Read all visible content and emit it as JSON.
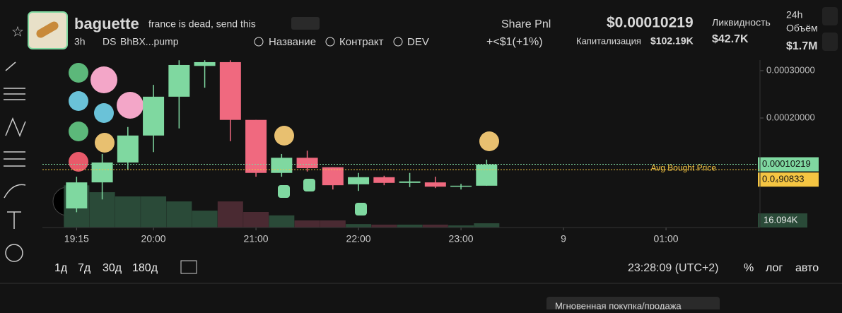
{
  "header": {
    "name": "baguette",
    "tagline": "france is dead, send this",
    "age": "3h",
    "ds": "DS",
    "address": "BhBX...pump",
    "links": [
      "Название",
      "Контракт",
      "DEV"
    ],
    "share": "Share Pnl",
    "pnl": "+<$1(+1%)",
    "price": "$0.00010219",
    "cap_label": "Капитализация",
    "cap_value": "$102.19K",
    "liq_label": "Ликвидность",
    "liq_value": "$42.7K",
    "vol_label_1": "24h",
    "vol_label_2": "Объём",
    "vol_value": "$1.7M"
  },
  "chart": {
    "type": "candlestick",
    "x": [
      1155,
      1170,
      1185,
      1200,
      1215,
      1230,
      1245,
      1260,
      1275,
      1290,
      1305,
      1320,
      1335,
      1350,
      1365,
      1380,
      1395
    ],
    "open": [
      9e-06,
      6.4e-05,
      0.000106,
      0.000163,
      0.000245,
      0.00031,
      0.000318,
      0.000196,
      8.4e-05,
      0.000116,
      9.6e-05,
      6e-05,
      7.5e-05,
      6.3e-05,
      6.4e-05,
      5.5e-05,
      5.7e-05
    ],
    "high": [
      7.6e-05,
      0.000124,
      0.000181,
      0.00027,
      0.000322,
      0.000322,
      0.000322,
      0.000196,
      0.000124,
      0.000131,
      9.6e-05,
      8.4e-05,
      7.8e-05,
      8.4e-05,
      7.6e-05,
      6.1e-05,
      0.000112
    ],
    "low": [
      1e-06,
      2.8e-05,
      9.1e-05,
      0.000128,
      0.000178,
      0.000264,
      0.000151,
      7.6e-05,
      7.6e-05,
      8.7e-05,
      4.9e-05,
      4.6e-05,
      5.8e-05,
      5.4e-05,
      5.2e-05,
      4.9e-05,
      5.7e-05
    ],
    "close": [
      6.4e-05,
      0.000106,
      0.000163,
      0.000245,
      0.000312,
      0.000318,
      0.000196,
      8.4e-05,
      0.000116,
      9.4e-05,
      5.8e-05,
      7.5e-05,
      6.3e-05,
      6.6e-05,
      5.5e-05,
      5.7e-05,
      0.000102
    ],
    "volume": [
      160,
      134,
      118,
      118,
      99,
      64,
      99,
      59,
      46,
      27,
      27,
      13,
      11,
      11,
      11,
      8,
      16.094
    ],
    "volume_label": "16.094K",
    "up_color": "#7fd8a0",
    "down_color": "#f0697f",
    "ylim": [
      -3.13e-05,
      0.0003224
    ],
    "xlim": [
      1135,
      1555
    ],
    "yticks": [
      {
        "value": 0.0003,
        "label": "0.00030000"
      },
      {
        "value": 0.0002,
        "label": "0.00020000"
      }
    ],
    "xticks": [
      {
        "value": 1155,
        "label": "19:15"
      },
      {
        "value": 1200,
        "label": "20:00"
      },
      {
        "value": 1260,
        "label": "21:00"
      },
      {
        "value": 1320,
        "label": "22:00"
      },
      {
        "value": 1380,
        "label": "23:00"
      },
      {
        "value": 1440,
        "label": "9"
      },
      {
        "value": 1500,
        "label": "01:00"
      }
    ],
    "avg_label": "Avg Bought Price",
    "price_labels": [
      {
        "value": 0.00010219,
        "label": "0.00010219",
        "color": "#7fd8a0"
      },
      {
        "value": 9.08e-05,
        "label": "0.0₄90833",
        "color": "#f5c542"
      }
    ]
  },
  "toolbar": {
    "ranges": [
      "1д",
      "7д",
      "30д",
      "180д"
    ],
    "clock": "23:28:09 (UTC+2)",
    "modes": [
      "%",
      "лог",
      "авто"
    ]
  },
  "footer": {
    "button": "Мгновенная покупка/продажа"
  }
}
